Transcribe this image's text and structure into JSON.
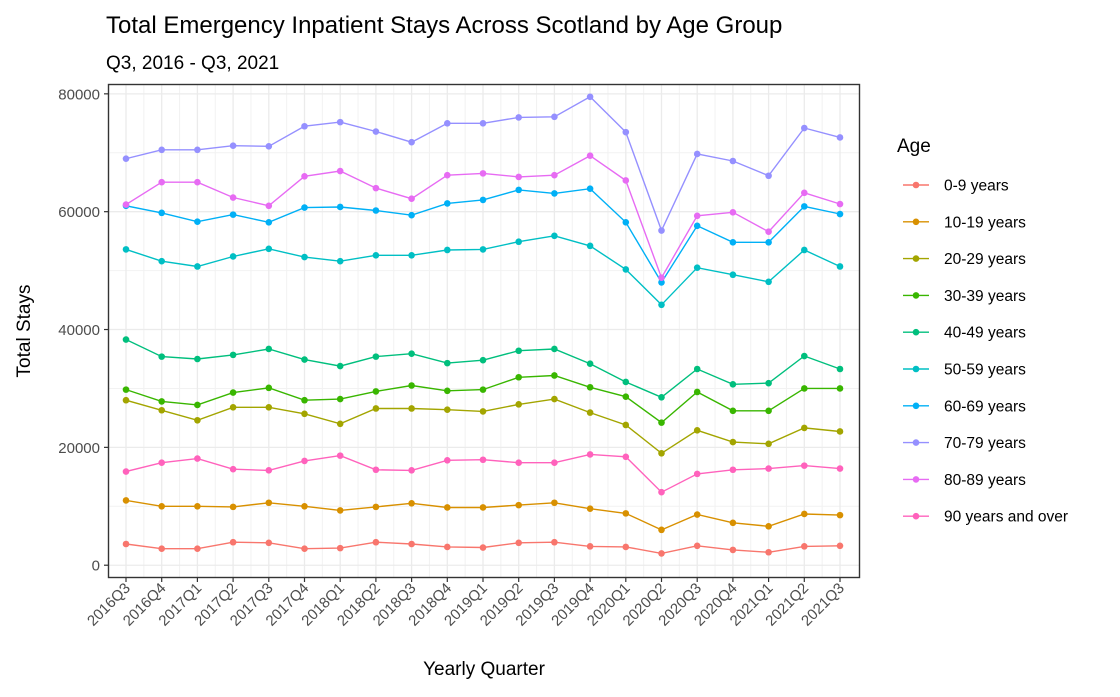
{
  "chart_data": {
    "type": "line",
    "title": "Total Emergency Inpatient Stays Across Scotland by Age Group",
    "subtitle": "Q3, 2016 - Q3, 2021",
    "xlabel": "Yearly Quarter",
    "ylabel": "Total Stays",
    "ylim": [
      -2000,
      81500
    ],
    "yticks": [
      0,
      20000,
      40000,
      60000,
      80000
    ],
    "grid": true,
    "legend": {
      "title": "Age",
      "position": "right"
    },
    "categories": [
      "2016Q3",
      "2016Q4",
      "2017Q1",
      "2017Q2",
      "2017Q3",
      "2017Q4",
      "2018Q1",
      "2018Q2",
      "2018Q3",
      "2018Q4",
      "2019Q1",
      "2019Q2",
      "2019Q3",
      "2019Q4",
      "2020Q1",
      "2020Q2",
      "2020Q3",
      "2020Q4",
      "2021Q1",
      "2021Q2",
      "2021Q3"
    ],
    "series": [
      {
        "name": "0-9 years",
        "color": "#F8766D",
        "values": [
          3600,
          2800,
          2800,
          3900,
          3800,
          2800,
          2900,
          3900,
          3600,
          3100,
          3000,
          3800,
          3900,
          3200,
          3100,
          2000,
          3300,
          2600,
          2200,
          3200,
          3300
        ]
      },
      {
        "name": "10-19 years",
        "color": "#D89000",
        "values": [
          11000,
          10000,
          10000,
          9900,
          10600,
          10000,
          9300,
          9900,
          10500,
          9800,
          9800,
          10200,
          10600,
          9600,
          8800,
          6000,
          8600,
          7200,
          6600,
          8700,
          8500
        ]
      },
      {
        "name": "20-29 years",
        "color": "#A3A500",
        "values": [
          28000,
          26300,
          24600,
          26800,
          26800,
          25700,
          24000,
          26600,
          26600,
          26400,
          26100,
          27300,
          28200,
          25900,
          23800,
          19000,
          22900,
          20900,
          20600,
          23300,
          22700
        ]
      },
      {
        "name": "30-39 years",
        "color": "#39B600",
        "values": [
          29800,
          27800,
          27200,
          29300,
          30100,
          28000,
          28200,
          29500,
          30500,
          29600,
          29800,
          31900,
          32200,
          30200,
          28600,
          24200,
          29400,
          26200,
          26200,
          30000,
          30000
        ]
      },
      {
        "name": "40-49 years",
        "color": "#00BF7D",
        "values": [
          38300,
          35400,
          35000,
          35700,
          36700,
          34900,
          33800,
          35400,
          35900,
          34300,
          34800,
          36400,
          36700,
          34200,
          31100,
          28500,
          33300,
          30700,
          30900,
          35500,
          33300
        ]
      },
      {
        "name": "50-59 years",
        "color": "#00BFC4",
        "values": [
          53600,
          51600,
          50700,
          52400,
          53700,
          52300,
          51600,
          52600,
          52600,
          53500,
          53600,
          54900,
          55900,
          54200,
          50200,
          44200,
          50500,
          49300,
          48100,
          53500,
          50700
        ]
      },
      {
        "name": "60-69 years",
        "color": "#00B0F6",
        "values": [
          61000,
          59800,
          58300,
          59500,
          58200,
          60700,
          60800,
          60200,
          59400,
          61400,
          62000,
          63700,
          63100,
          63900,
          58200,
          48000,
          57600,
          54800,
          54800,
          60900,
          59600
        ]
      },
      {
        "name": "70-79 years",
        "color": "#9590FF",
        "values": [
          69000,
          70500,
          70500,
          71200,
          71100,
          74500,
          75200,
          73600,
          71800,
          75000,
          75000,
          76000,
          76100,
          79500,
          73500,
          56800,
          69800,
          68600,
          66100,
          74200,
          72600
        ]
      },
      {
        "name": "80-89 years",
        "color": "#E76BF3",
        "values": [
          61200,
          65000,
          65000,
          62400,
          61000,
          66000,
          66900,
          64000,
          62200,
          66200,
          66500,
          65900,
          66200,
          69500,
          65300,
          48800,
          59300,
          59900,
          56600,
          63200,
          61300
        ]
      },
      {
        "name": "90 years and over",
        "color": "#FF62BC",
        "values": [
          15900,
          17400,
          18100,
          16300,
          16100,
          17700,
          18600,
          16200,
          16100,
          17800,
          17900,
          17400,
          17400,
          18800,
          18400,
          12400,
          15500,
          16200,
          16400,
          16900,
          16400
        ]
      }
    ]
  }
}
